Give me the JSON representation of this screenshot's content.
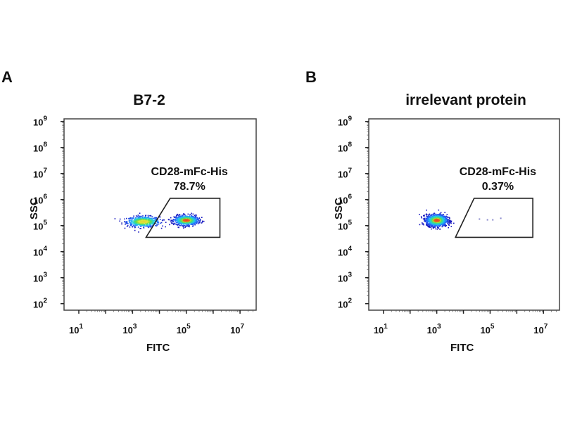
{
  "chart_data": [
    {
      "type": "scatter",
      "subtype": "flow-cytometry-density-plot",
      "panel_letter": "A",
      "title": "B7-2",
      "xlabel": "FITC",
      "ylabel": "SSC",
      "xscale": "log",
      "yscale": "log",
      "xlim_log10": [
        0.45,
        7.6
      ],
      "ylim_log10": [
        1.75,
        9.1
      ],
      "x_ticks": [
        {
          "exp": "1",
          "base": "10"
        },
        {
          "exp": "3",
          "base": "10"
        },
        {
          "exp": "5",
          "base": "10"
        },
        {
          "exp": "7",
          "base": "10"
        }
      ],
      "x_tick_values_log10": [
        1,
        3,
        5,
        7
      ],
      "y_ticks": [
        {
          "exp": "2",
          "base": "10"
        },
        {
          "exp": "3",
          "base": "10"
        },
        {
          "exp": "4",
          "base": "10"
        },
        {
          "exp": "5",
          "base": "10"
        },
        {
          "exp": "6",
          "base": "10"
        },
        {
          "exp": "7",
          "base": "10"
        },
        {
          "exp": "8",
          "base": "10"
        },
        {
          "exp": "9",
          "base": "10"
        }
      ],
      "y_tick_values_log10": [
        2,
        3,
        4,
        5,
        6,
        7,
        8,
        9
      ],
      "gate": {
        "name": "CD28-mFc-His",
        "percent": "78.7%",
        "polygon_log10": [
          [
            3.5,
            4.55
          ],
          [
            4.4,
            6.05
          ],
          [
            6.25,
            6.05
          ],
          [
            6.25,
            4.55
          ]
        ]
      },
      "populations": [
        {
          "center_log10": [
            3.4,
            5.15
          ],
          "spread_log10": [
            0.55,
            0.18
          ],
          "weight": 0.45
        },
        {
          "center_log10": [
            5.0,
            5.2
          ],
          "spread_log10": [
            0.4,
            0.17
          ],
          "weight": 0.55
        }
      ],
      "outliers_log10": [
        [
          2.6,
          5.1
        ]
      ]
    },
    {
      "type": "scatter",
      "subtype": "flow-cytometry-density-plot",
      "panel_letter": "B",
      "title": "irrelevant protein",
      "xlabel": "FITC",
      "ylabel": "SSC",
      "xscale": "log",
      "yscale": "log",
      "xlim_log10": [
        0.45,
        7.6
      ],
      "ylim_log10": [
        1.75,
        9.1
      ],
      "x_ticks": [
        {
          "exp": "1",
          "base": "10"
        },
        {
          "exp": "3",
          "base": "10"
        },
        {
          "exp": "5",
          "base": "10"
        },
        {
          "exp": "7",
          "base": "10"
        }
      ],
      "x_tick_values_log10": [
        1,
        3,
        5,
        7
      ],
      "y_ticks": [
        {
          "exp": "2",
          "base": "10"
        },
        {
          "exp": "3",
          "base": "10"
        },
        {
          "exp": "4",
          "base": "10"
        },
        {
          "exp": "5",
          "base": "10"
        },
        {
          "exp": "6",
          "base": "10"
        },
        {
          "exp": "7",
          "base": "10"
        },
        {
          "exp": "8",
          "base": "10"
        },
        {
          "exp": "9",
          "base": "10"
        }
      ],
      "y_tick_values_log10": [
        2,
        3,
        4,
        5,
        6,
        7,
        8,
        9
      ],
      "gate": {
        "name": "CD28-mFc-His",
        "percent": "0.37%",
        "polygon_log10": [
          [
            3.7,
            4.55
          ],
          [
            4.4,
            6.05
          ],
          [
            6.6,
            6.05
          ],
          [
            6.6,
            4.55
          ]
        ]
      },
      "populations": [
        {
          "center_log10": [
            3.0,
            5.2
          ],
          "spread_log10": [
            0.35,
            0.2
          ],
          "weight": 1.0
        }
      ],
      "outliers_log10": [
        [
          4.6,
          5.25
        ],
        [
          4.9,
          5.22
        ],
        [
          5.1,
          5.22
        ],
        [
          5.4,
          5.28
        ]
      ]
    }
  ]
}
